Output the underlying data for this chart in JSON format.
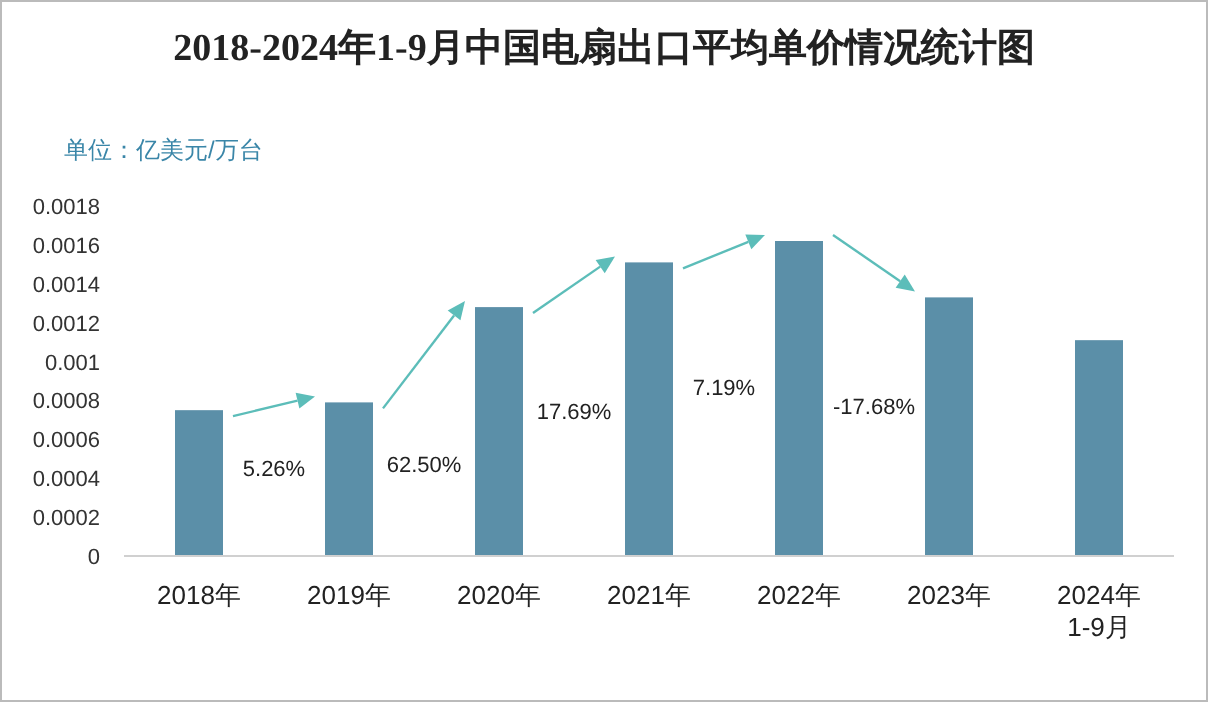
{
  "chart_data": {
    "type": "bar",
    "title": "2018-2024年1-9月中国电扇出口平均单价情况统计图",
    "ylabel": "单位：亿美元/万台",
    "categories": [
      "2018年",
      "2019年",
      "2020年",
      "2021年",
      "2022年",
      "2023年",
      "2024年1-9月"
    ],
    "values": [
      0.00075,
      0.00079,
      0.00128,
      0.00151,
      0.00162,
      0.00133,
      0.00111
    ],
    "color": "#5b8fa8",
    "ylim": [
      0,
      0.0018
    ],
    "yticks": [
      0,
      0.0002,
      0.0004,
      0.0006,
      0.0008,
      0.001,
      0.0012,
      0.0014,
      0.0016,
      0.0018
    ],
    "annotations": [
      "5.26%",
      "62.50%",
      "17.69%",
      "7.19%",
      "-17.68%"
    ],
    "grid": false
  }
}
